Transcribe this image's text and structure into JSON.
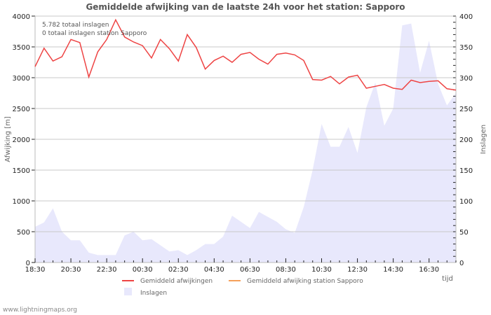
{
  "chart_data": {
    "type": "line",
    "title": "Gemiddelde afwijking van de laatste 24h voor het station: Sapporo",
    "xlabel": "tijd",
    "ylabel": "Afwijking  [m]",
    "y2label": "Inslagen",
    "ylim": [
      0,
      4000
    ],
    "y2lim": [
      0,
      400
    ],
    "grid": true,
    "yticks": [
      "0",
      "500",
      "1000",
      "1500",
      "2000",
      "2500",
      "3000",
      "3500",
      "4000"
    ],
    "y2ticks": [
      "0",
      "50",
      "100",
      "150",
      "200",
      "250",
      "300",
      "350",
      "400"
    ],
    "xticks": [
      "18:30",
      "20:30",
      "22:30",
      "00:30",
      "02:30",
      "04:30",
      "06:30",
      "08:30",
      "10:30",
      "12:30",
      "14:30",
      "16:30"
    ],
    "annotations": [
      "5.782 totaal inslagen",
      "0 totaal inslagen station Sapporo"
    ],
    "legend": [
      {
        "label": "Gemiddeld afwijkingen",
        "color": "#ee4444",
        "kind": "line"
      },
      {
        "label": "Gemiddeld afwijking station Sapporo",
        "color": "#f5a05a",
        "kind": "line"
      },
      {
        "label": "Inslagen",
        "color": "#e8e8fc",
        "kind": "area"
      }
    ],
    "series": [
      {
        "name": "Gemiddeld afwijkingen",
        "axis": "left",
        "values": [
          3180,
          3480,
          3270,
          3340,
          3620,
          3570,
          3010,
          3420,
          3620,
          3940,
          3660,
          3580,
          3520,
          3320,
          3620,
          3470,
          3270,
          3700,
          3490,
          3140,
          3280,
          3350,
          3250,
          3380,
          3410,
          3300,
          3220,
          3380,
          3400,
          3370,
          3280,
          2970,
          2960,
          3020,
          2900,
          3010,
          3040,
          2830,
          2860,
          2890,
          2830,
          2810,
          2960,
          2920,
          2940,
          2950,
          2820,
          2800
        ]
      },
      {
        "name": "Inslagen",
        "axis": "right",
        "values": [
          58,
          65,
          88,
          50,
          36,
          36,
          16,
          12,
          12,
          12,
          44,
          50,
          36,
          38,
          28,
          18,
          20,
          12,
          20,
          30,
          30,
          42,
          76,
          66,
          56,
          82,
          74,
          66,
          54,
          48,
          90,
          150,
          225,
          188,
          188,
          220,
          178,
          252,
          292,
          222,
          250,
          385,
          388,
          308,
          360,
          290,
          255,
          275
        ]
      }
    ]
  },
  "footer": "www.lightningmaps.org"
}
